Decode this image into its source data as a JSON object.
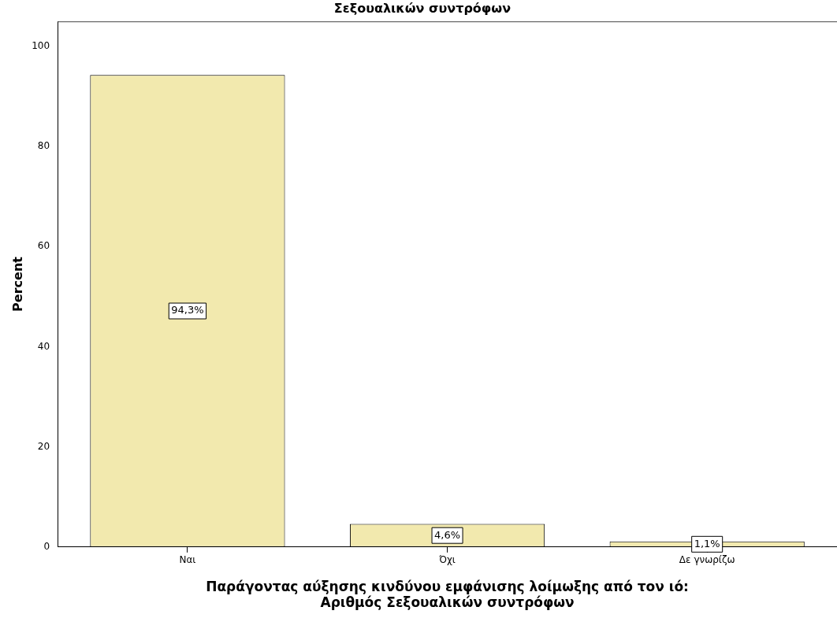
{
  "chart_data": {
    "type": "bar",
    "title": "Σεξουαλικών συντρόφων",
    "xlabel": "Παράγοντας αύξησης κινδύνου εμφάνισης λοίμωξης από τον ιό:\nΑριθμός Σεξουαλικών συντρόφων",
    "ylabel": "Percent",
    "categories": [
      "Ναι",
      "Όχι",
      "Δε γνωρίζω"
    ],
    "values": [
      94.3,
      4.6,
      1.1
    ],
    "value_labels": [
      "94,3%",
      "4,6%",
      "1,1%"
    ],
    "color": "#f2e9ae",
    "ylim": [
      0,
      105
    ],
    "yticks": [
      0,
      20,
      40,
      60,
      80,
      100
    ],
    "grid": false,
    "legend": false
  }
}
